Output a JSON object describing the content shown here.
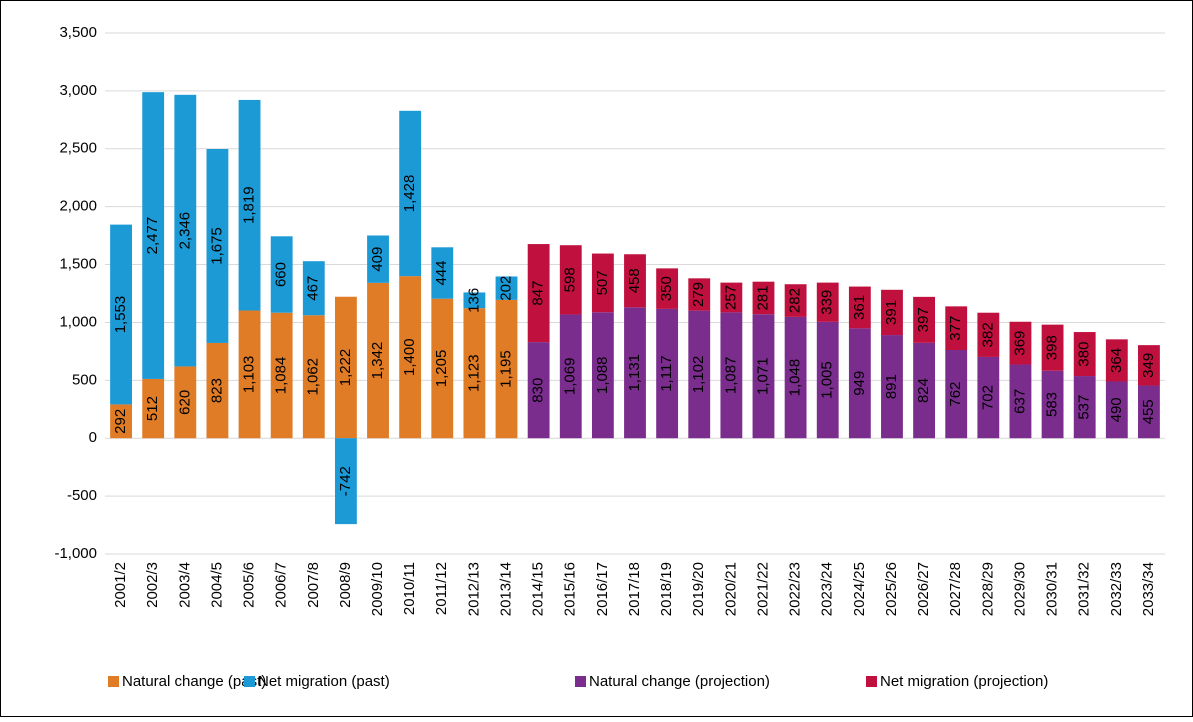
{
  "chart_data": {
    "type": "bar",
    "stacked": true,
    "categories": [
      "2001/2",
      "2002/3",
      "2003/4",
      "2004/5",
      "2005/6",
      "2006/7",
      "2007/8",
      "2008/9",
      "2009/10",
      "2010/11",
      "2011/12",
      "2012/13",
      "2013/14",
      "2014/15",
      "2015/16",
      "2016/17",
      "2017/18",
      "2018/19",
      "2019/20",
      "2020/21",
      "2021/22",
      "2022/23",
      "2023/24",
      "2024/25",
      "2025/26",
      "2026/27",
      "2027/28",
      "2028/29",
      "2029/30",
      "2030/31",
      "2031/32",
      "2032/33",
      "2033/34"
    ],
    "series": [
      {
        "name": "Natural change (past)",
        "color": "#e07b26",
        "values": [
          292,
          512,
          620,
          823,
          1103,
          1084,
          1062,
          1222,
          1342,
          1400,
          1205,
          1123,
          1195,
          null,
          null,
          null,
          null,
          null,
          null,
          null,
          null,
          null,
          null,
          null,
          null,
          null,
          null,
          null,
          null,
          null,
          null,
          null,
          null
        ],
        "value_labels": [
          "292",
          "512",
          "620",
          "823",
          "1,103",
          "1,084",
          "1,062",
          "1,222",
          "1,342",
          "1,400",
          "1,205",
          "1,123",
          "1,195",
          null,
          null,
          null,
          null,
          null,
          null,
          null,
          null,
          null,
          null,
          null,
          null,
          null,
          null,
          null,
          null,
          null,
          null,
          null,
          null
        ]
      },
      {
        "name": "Net migration (past)",
        "color": "#1b9ad6",
        "values": [
          1553,
          2477,
          2346,
          1675,
          1819,
          660,
          467,
          -742,
          409,
          1428,
          444,
          136,
          202,
          null,
          null,
          null,
          null,
          null,
          null,
          null,
          null,
          null,
          null,
          null,
          null,
          null,
          null,
          null,
          null,
          null,
          null,
          null,
          null
        ],
        "value_labels": [
          "1,553",
          "2,477",
          "2,346",
          "1,675",
          "1,819",
          "660",
          "467",
          "-742",
          "409",
          "1,428",
          "444",
          "136",
          "202",
          null,
          null,
          null,
          null,
          null,
          null,
          null,
          null,
          null,
          null,
          null,
          null,
          null,
          null,
          null,
          null,
          null,
          null,
          null,
          null
        ]
      },
      {
        "name": "Natural change (projection)",
        "color": "#7b2d8e",
        "values": [
          null,
          null,
          null,
          null,
          null,
          null,
          null,
          null,
          null,
          null,
          null,
          null,
          null,
          830,
          1069,
          1088,
          1131,
          1117,
          1102,
          1087,
          1071,
          1048,
          1005,
          949,
          891,
          824,
          762,
          702,
          637,
          583,
          537,
          490,
          455
        ],
        "value_labels": [
          null,
          null,
          null,
          null,
          null,
          null,
          null,
          null,
          null,
          null,
          null,
          null,
          null,
          "830",
          "1,069",
          "1,088",
          "1,131",
          "1,117",
          "1,102",
          "1,087",
          "1,071",
          "1,048",
          "1,005",
          "949",
          "891",
          "824",
          "762",
          "702",
          "637",
          "583",
          "537",
          "490",
          "455"
        ]
      },
      {
        "name": "Net migration (projection)",
        "color": "#c0103e",
        "values": [
          null,
          null,
          null,
          null,
          null,
          null,
          null,
          null,
          null,
          null,
          null,
          null,
          null,
          847,
          598,
          507,
          458,
          350,
          279,
          257,
          281,
          282,
          339,
          361,
          391,
          397,
          377,
          382,
          369,
          398,
          380,
          364,
          349
        ],
        "value_labels": [
          null,
          null,
          null,
          null,
          null,
          null,
          null,
          null,
          null,
          null,
          null,
          null,
          null,
          "847",
          "598",
          "507",
          "458",
          "350",
          "279",
          "257",
          "281",
          "282",
          "339",
          "361",
          "391",
          "397",
          "377",
          "382",
          "369",
          "398",
          "380",
          "364",
          "349"
        ]
      }
    ],
    "ylim": [
      -1000,
      3500
    ],
    "yticks": [
      {
        "value": -1000,
        "label": "-1,000"
      },
      -500,
      0,
      500,
      {
        "value": 1000,
        "label": "1,000"
      },
      {
        "value": 1500,
        "label": "1,500"
      },
      {
        "value": 2000,
        "label": "2,000"
      },
      {
        "value": 2500,
        "label": "2,500"
      },
      {
        "value": 3000,
        "label": "3,000"
      },
      {
        "value": 3500,
        "label": "3,500"
      }
    ],
    "grid": true
  }
}
